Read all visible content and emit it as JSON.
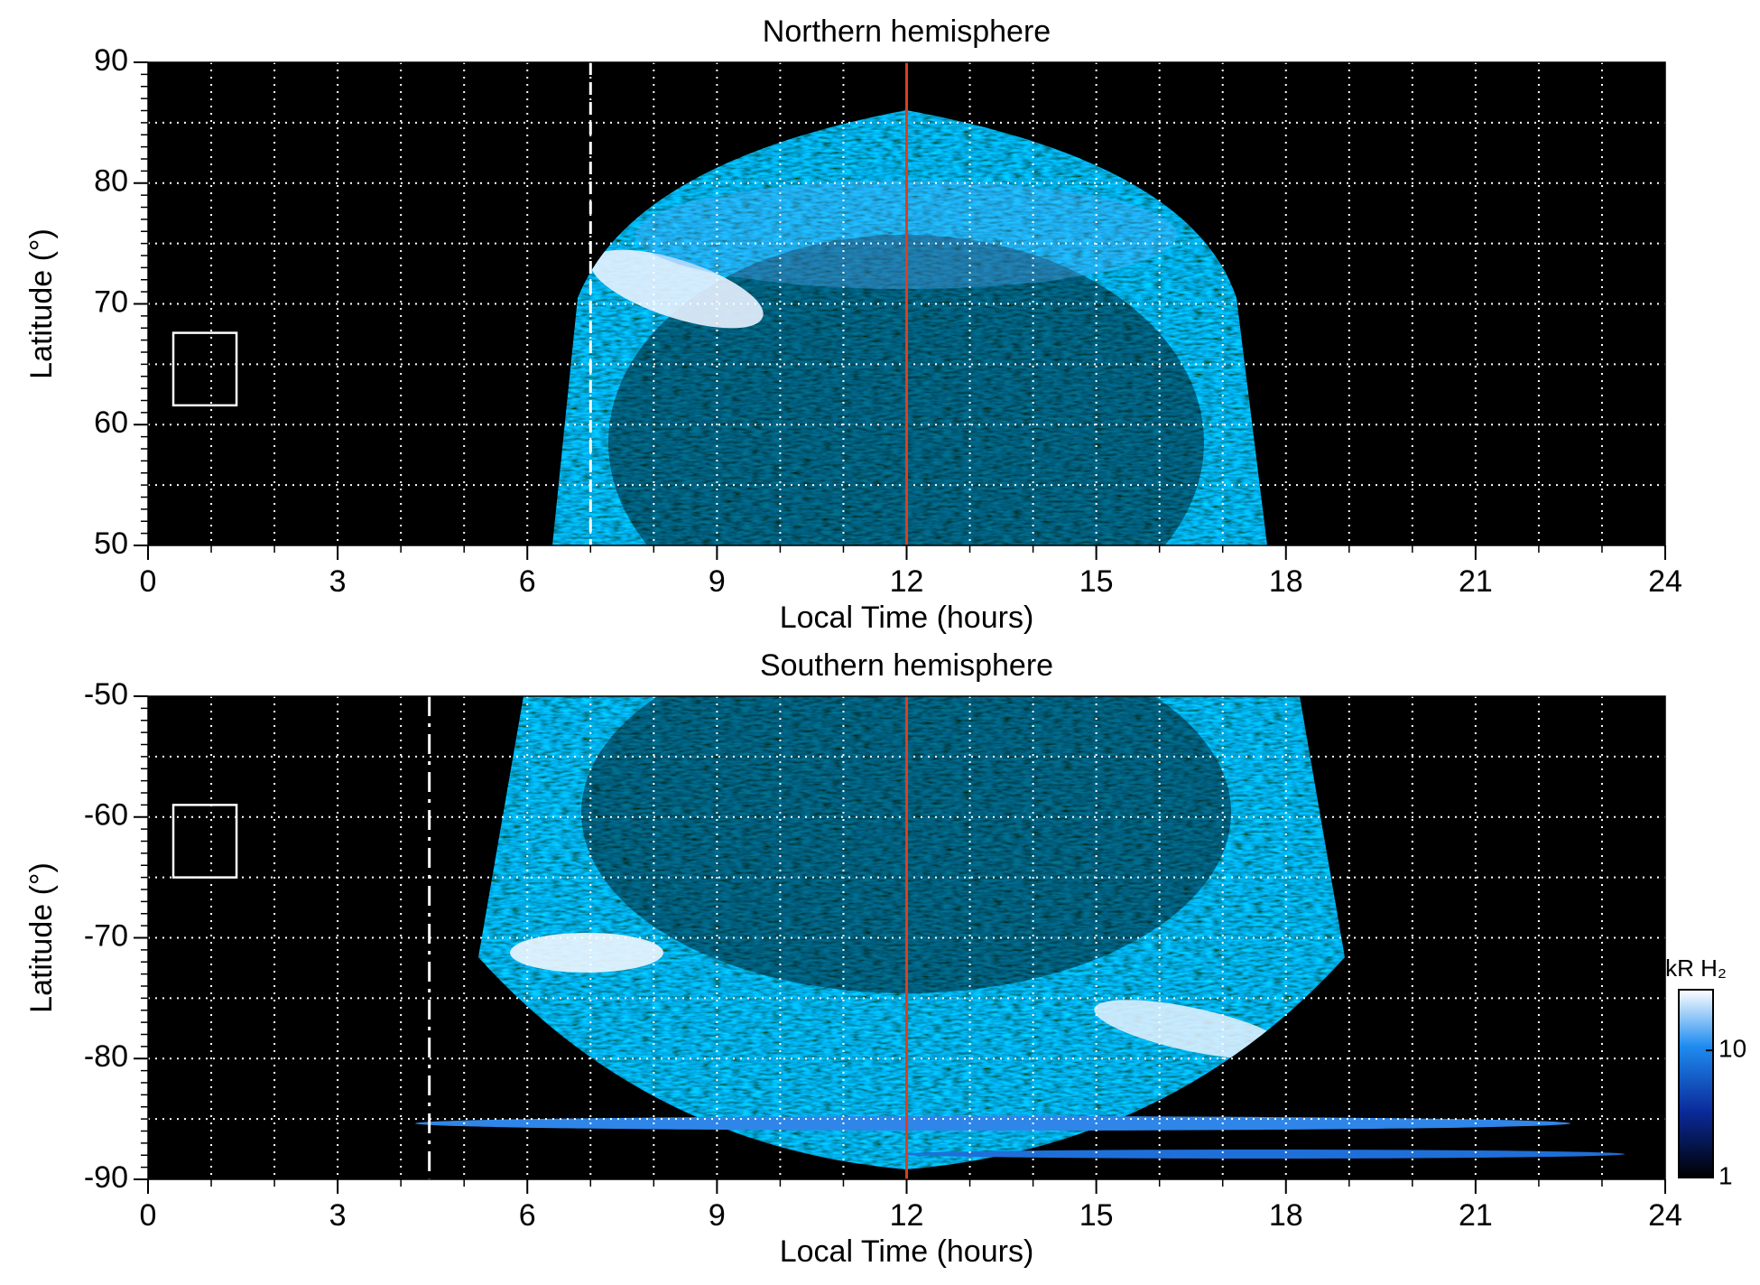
{
  "chart_data": [
    {
      "type": "heatmap",
      "title": "Northern hemisphere",
      "xlabel": "Local Time (hours)",
      "ylabel": "Latitude (°)",
      "xlim": [
        0,
        24
      ],
      "xticks": [
        0,
        3,
        6,
        9,
        12,
        15,
        18,
        21,
        24
      ],
      "ylim": [
        50,
        90
      ],
      "yticks": [
        50,
        60,
        70,
        80,
        90
      ],
      "grid": true,
      "grid_x_step": 1,
      "grid_y_step": 5,
      "minor_y_step": 1,
      "vertical_lines": [
        {
          "x": 7,
          "color": "#ffffff",
          "style": "dashed"
        },
        {
          "x": 12,
          "color": "#d9401f",
          "style": "solid"
        }
      ],
      "box": {
        "x": [
          0.4,
          1.4
        ],
        "y": [
          61.6,
          67.6
        ]
      }
    },
    {
      "type": "heatmap",
      "title": "Southern hemisphere",
      "xlabel": "Local Time (hours)",
      "ylabel": "Latitude (°)",
      "xlim": [
        0,
        24
      ],
      "xticks": [
        0,
        3,
        6,
        9,
        12,
        15,
        18,
        21,
        24
      ],
      "ylim": [
        -90,
        -50
      ],
      "yticks": [
        -90,
        -80,
        -70,
        -60,
        -50
      ],
      "grid": true,
      "grid_x_step": 1,
      "grid_y_step": 5,
      "minor_y_step": 1,
      "vertical_lines": [
        {
          "x": 4.45,
          "color": "#ffffff",
          "style": "dash-dot"
        },
        {
          "x": 12,
          "color": "#d9401f",
          "style": "solid"
        }
      ],
      "box": {
        "x": [
          0.4,
          1.4
        ],
        "y": [
          -65,
          -59
        ]
      }
    },
    {
      "type": "colorbar",
      "label": "kR H₂",
      "clim": [
        1,
        30
      ],
      "ticks": [
        1,
        10
      ],
      "scale": "log"
    }
  ]
}
